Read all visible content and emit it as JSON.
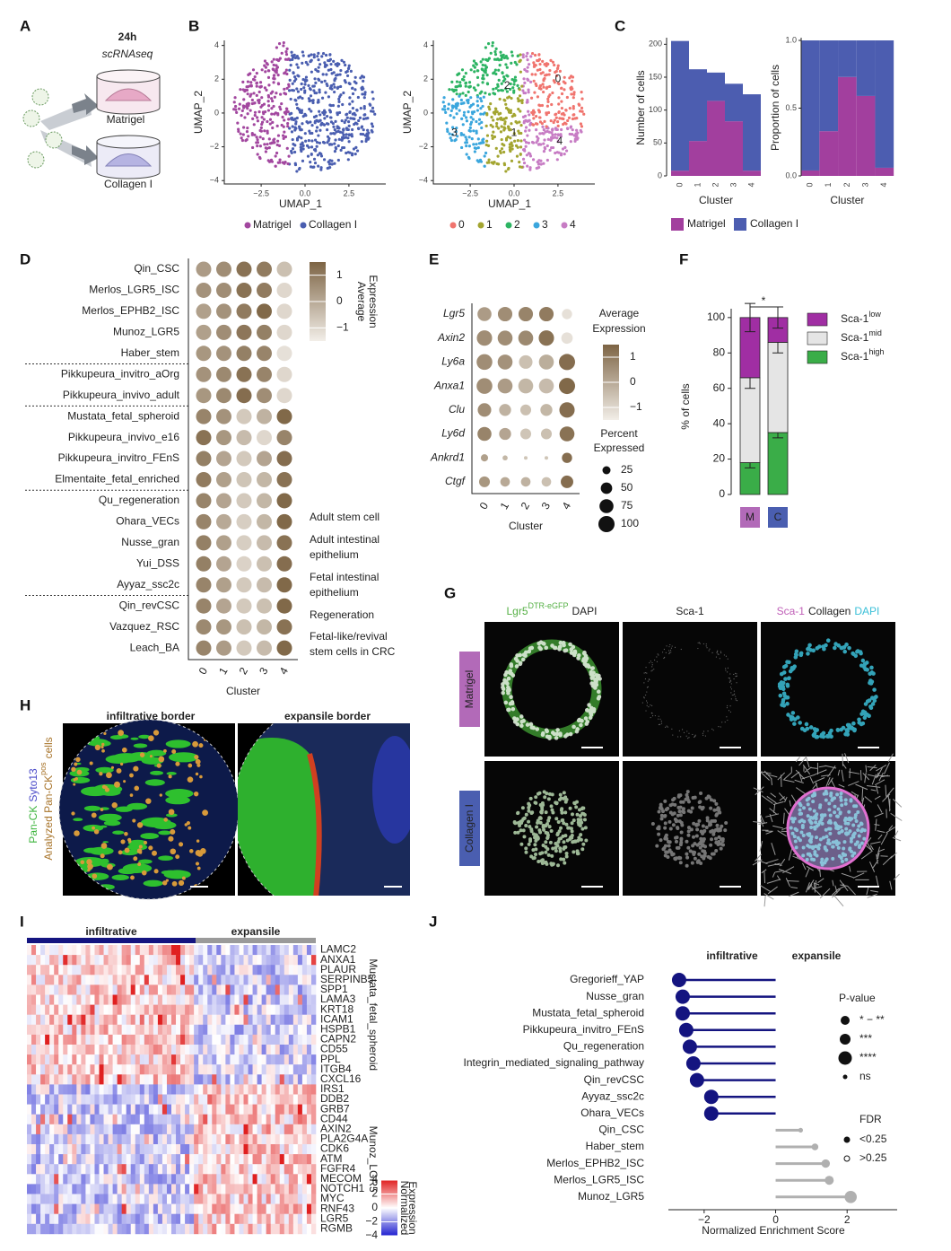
{
  "A": {
    "letter": "A",
    "time": "24h",
    "method": "scRNAseq",
    "conditions": [
      "Matrigel",
      "Collagen I"
    ]
  },
  "B": {
    "letter": "B",
    "x_label": "UMAP_1",
    "y_label": "UMAP_2",
    "xlim": [
      -4.6,
      4.6
    ],
    "ylim": [
      -4.2,
      4.3
    ],
    "xticks": [
      {
        "value": -2.5,
        "label": "−2.5"
      },
      {
        "value": 0,
        "label": "0.0"
      },
      2.5
    ],
    "yticks": [
      {
        "value": -4,
        "label": "−4"
      },
      {
        "value": -2,
        "label": "−2"
      },
      0,
      2,
      4
    ],
    "conditions": [
      {
        "name": "Matrigel",
        "color": "#a2479f"
      },
      {
        "name": "Collagen I",
        "color": "#4a5eb0"
      }
    ],
    "clusters": [
      {
        "name": "0",
        "color": "#f0746e"
      },
      {
        "name": "1",
        "color": "#a3a530"
      },
      {
        "name": "2",
        "color": "#2db463"
      },
      {
        "name": "3",
        "color": "#3aa6dd"
      },
      {
        "name": "4",
        "color": "#c77cc4"
      }
    ]
  },
  "C": {
    "letter": "C",
    "x_label": "Cluster",
    "categories": [
      "0",
      "1",
      "2",
      "3",
      "4"
    ],
    "counts": {
      "y_label": "Number of cells",
      "ylim": [
        0,
        210
      ],
      "yticks": [
        0,
        50,
        100,
        150,
        200
      ],
      "series": [
        {
          "name": "Matrigel",
          "color": "#a23f9e",
          "values": [
            8,
            53,
            114,
            83,
            8
          ]
        },
        {
          "name": "Collagen I",
          "color": "#4c5db0",
          "values": [
            197,
            109,
            43,
            57,
            116
          ]
        }
      ]
    },
    "proportions": {
      "y_label": "Proportion of cells",
      "ylim": [
        0,
        1.02
      ],
      "yticks": [
        {
          "value": 0,
          "label": "0.0"
        },
        0.5,
        {
          "value": 1,
          "label": "1.0"
        }
      ],
      "series": [
        {
          "name": "Matrigel",
          "color": "#a23f9e",
          "values": [
            0.04,
            0.33,
            0.73,
            0.59,
            0.06
          ]
        },
        {
          "name": "Collagen I",
          "color": "#4c5db0",
          "values": [
            0.96,
            0.67,
            0.27,
            0.41,
            0.94
          ]
        }
      ]
    }
  },
  "D": {
    "letter": "D",
    "x_label": "Cluster",
    "categories": [
      "0",
      "1",
      "2",
      "3",
      "4"
    ],
    "signatures": [
      "Qin_CSC",
      "Merlos_LGR5_ISC",
      "Merlos_EPHB2_ISC",
      "Munoz_LGR5",
      "Haber_stem",
      "Pikkupeura_invitro_aOrg",
      "Pikkupeura_invivo_adult",
      "Mustata_fetal_spheroid",
      "Pikkupeura_invivo_e16",
      "Pikkupeura_invitro_FEnS",
      "Elmentaite_fetal_enriched",
      "Qu_regeneration",
      "Ohara_VECs",
      "Nusse_gran",
      "Yui_DSS",
      "Ayyaz_ssc2c",
      "Qin_revCSC",
      "Vazquez_RSC",
      "Leach_BA"
    ],
    "groups": [
      {
        "lines": [
          "Adult stem cell"
        ],
        "color": "#3f9f3f",
        "members": [
          0,
          1,
          2,
          3,
          4
        ]
      },
      {
        "lines": [
          "Adult intestinal",
          "epithelium"
        ],
        "color": "#1f7a2e",
        "members": [
          5,
          6
        ]
      },
      {
        "lines": [
          "Fetal intestinal",
          "epithelium"
        ],
        "color": "#a46aa8",
        "members": [
          7,
          8,
          9,
          10
        ]
      },
      {
        "lines": [
          "Regeneration"
        ],
        "color": "#9c2fa0",
        "members": [
          11,
          12,
          13,
          14,
          15
        ]
      },
      {
        "lines": [
          "Fetal-like/revival",
          "stem cells in CRC"
        ],
        "color": "#5b2a9a",
        "members": [
          16,
          17,
          18
        ]
      }
    ],
    "expression": [
      [
        0.3,
        0.6,
        1.2,
        1.0,
        -0.5
      ],
      [
        0.5,
        0.6,
        1.2,
        1.0,
        -1.0
      ],
      [
        0.2,
        0.5,
        1.0,
        1.4,
        -1.0
      ],
      [
        0.2,
        0.6,
        1.1,
        0.9,
        -1.0
      ],
      [
        0.4,
        0.5,
        0.9,
        0.8,
        -1.2
      ],
      [
        0.5,
        0.7,
        1.2,
        0.8,
        -1.0
      ],
      [
        0.4,
        0.7,
        1.3,
        0.6,
        -1.0
      ],
      [
        0.8,
        0.5,
        -0.7,
        -0.2,
        1.4
      ],
      [
        1.2,
        0.4,
        -0.4,
        -1.0,
        0.8
      ],
      [
        0.9,
        0.1,
        -0.7,
        0.1,
        1.3
      ],
      [
        1.0,
        0.2,
        -0.6,
        -0.3,
        1.2
      ],
      [
        0.8,
        0.1,
        -0.7,
        -0.3,
        1.4
      ],
      [
        0.8,
        0.0,
        -0.8,
        -0.3,
        1.4
      ],
      [
        0.9,
        0.2,
        -0.8,
        -0.4,
        1.2
      ],
      [
        0.9,
        0.1,
        -0.9,
        -0.5,
        1.3
      ],
      [
        0.8,
        0.2,
        -0.7,
        -0.4,
        1.4
      ],
      [
        0.8,
        0.1,
        -0.7,
        -0.5,
        1.4
      ],
      [
        0.7,
        0.4,
        -0.5,
        -0.3,
        1.2
      ],
      [
        0.8,
        0.3,
        -0.7,
        -0.4,
        1.4
      ]
    ],
    "colorbar": {
      "title": [
        "Average",
        "Expression"
      ],
      "clim": [
        -1.5,
        1.5
      ],
      "ticks": [
        {
          "value": -1,
          "label": "−1"
        },
        0,
        1
      ]
    }
  },
  "E": {
    "letter": "E",
    "x_label": "Cluster",
    "categories": [
      "0",
      "1",
      "2",
      "3",
      "4"
    ],
    "genes": [
      "Lgr5",
      "Axin2",
      "Ly6a",
      "Anxa1",
      "Clu",
      "Ly6d",
      "Ankrd1",
      "Ctgf"
    ],
    "expression": [
      [
        0.3,
        0.6,
        0.8,
        1.0,
        -1.2
      ],
      [
        0.6,
        0.6,
        0.7,
        1.2,
        -1.2
      ],
      [
        0.6,
        0.5,
        -0.5,
        -0.1,
        1.3
      ],
      [
        0.6,
        0.3,
        -0.3,
        -0.4,
        1.4
      ],
      [
        0.6,
        -0.2,
        -0.5,
        -0.3,
        1.3
      ],
      [
        0.8,
        0.1,
        -0.6,
        -0.5,
        1.2
      ],
      [
        0.2,
        -0.3,
        -0.6,
        -0.6,
        1.3
      ],
      [
        0.4,
        0.0,
        -0.2,
        -0.5,
        1.3
      ]
    ],
    "percent": [
      [
        75,
        80,
        80,
        80,
        40
      ],
      [
        90,
        85,
        85,
        90,
        50
      ],
      [
        95,
        85,
        70,
        85,
        100
      ],
      [
        95,
        85,
        85,
        85,
        100
      ],
      [
        70,
        55,
        45,
        55,
        90
      ],
      [
        75,
        55,
        45,
        45,
        85
      ],
      [
        20,
        10,
        5,
        5,
        40
      ],
      [
        45,
        35,
        35,
        35,
        60
      ]
    ],
    "colorbar": {
      "title": [
        "Average",
        "Expression"
      ],
      "clim": [
        -1.5,
        1.5
      ],
      "ticks": [
        {
          "value": -1,
          "label": "−1"
        },
        0,
        1
      ]
    },
    "size_legend": {
      "title": [
        "Percent",
        "Expressed"
      ],
      "values": [
        25,
        50,
        75,
        100
      ]
    }
  },
  "F": {
    "letter": "F",
    "y_label": "% of cells",
    "categories": [
      "M",
      "C"
    ],
    "category_colors": [
      "#b26ab8",
      "#4a5eb0"
    ],
    "ylim": [
      0,
      105
    ],
    "yticks": [
      0,
      20,
      40,
      60,
      80,
      100
    ],
    "significance": "*",
    "series": [
      {
        "name": "Sca-1",
        "level": "high",
        "color": "#3aad48",
        "values": [
          18,
          35
        ],
        "errors": [
          3,
          3
        ]
      },
      {
        "name": "Sca-1",
        "level": "mid",
        "color": "#e5e5e5",
        "values": [
          48,
          51
        ],
        "errors": [
          6,
          6
        ]
      },
      {
        "name": "Sca-1",
        "level": "low",
        "color": "#a02ea3",
        "values": [
          34,
          14
        ],
        "errors": [
          8,
          6
        ]
      }
    ]
  },
  "G": {
    "letter": "G",
    "columns": [
      [
        {
          "t": "Lgr5",
          "c": "#55b045"
        },
        {
          "t": "DTR-eGFP",
          "c": "#55b045",
          "sup": true
        },
        {
          "t": "DAPI",
          "c": "#222"
        }
      ],
      [
        {
          "t": "Sca-1",
          "c": "#222"
        }
      ],
      [
        {
          "t": "Sca-1",
          "c": "#c060b8"
        },
        {
          "t": "Collagen",
          "c": "#222"
        },
        {
          "t": "DAPI",
          "c": "#3cc0d8"
        }
      ]
    ],
    "rows": [
      {
        "name": "Matrigel",
        "color": "#b26ab8"
      },
      {
        "name": "Collagen I",
        "color": "#4a5eb0"
      }
    ]
  },
  "H": {
    "letter": "H",
    "titles": [
      {
        "text": "infiltrative border",
        "color": "#141480"
      },
      {
        "text": "expansile border",
        "color": "#8a8a8a"
      }
    ],
    "label_lines": [
      [
        {
          "t": "Pan-CK",
          "c": "#3cb43c"
        },
        {
          "t": "Syto13",
          "c": "#4848c8"
        }
      ],
      [
        {
          "t": "Analyzed Pan-CK",
          "c": "#a8742a"
        },
        {
          "t": "pos",
          "c": "#a8742a",
          "sup": true
        },
        {
          "t": "cells",
          "c": "#a8742a"
        }
      ]
    ]
  },
  "I": {
    "letter": "I",
    "groups": [
      {
        "name": "infiltrative",
        "color": "#141480"
      },
      {
        "name": "expansile",
        "color": "#9a9a9a"
      }
    ],
    "gene_sets": [
      {
        "name": "Mustata_fetal_spheroid",
        "color": "#a03aa8",
        "genes": [
          "LAMC2",
          "ANXA1",
          "PLAUR",
          "SERPINB5",
          "SPP1",
          "LAMA3",
          "KRT18",
          "ICAM1",
          "HSPB1",
          "CAPN2",
          "CD55",
          "PPL",
          "ITGB4",
          "CXCL16"
        ]
      },
      {
        "name": "Munoz_LGR5",
        "color": "#3c9a3c",
        "genes": [
          "IRS1",
          "DDB2",
          "GRB7",
          "CD44",
          "AXIN2",
          "PLA2G4A",
          "CDK6",
          "ATM",
          "FGFR4",
          "MECOM",
          "NOTCH1",
          "MYC",
          "RNF43",
          "LGR5",
          "RGMB"
        ]
      }
    ],
    "colorbar": {
      "title": [
        "Normalized",
        "Expression"
      ],
      "clim": [
        -4,
        4
      ],
      "ticks": [
        {
          "value": -4,
          "label": "−4"
        },
        {
          "value": -2,
          "label": "−2"
        },
        0,
        2,
        4
      ]
    }
  },
  "J": {
    "letter": "J",
    "groups": [
      {
        "name": "infiltrative",
        "color": "#141480"
      },
      {
        "name": "expansile",
        "color": "#b0b0b0"
      }
    ],
    "categories": [
      "Gregorieff_YAP",
      "Nusse_gran",
      "Mustata_fetal_spheroid",
      "Pikkupeura_invitro_FEnS",
      "Qu_regeneration",
      "Integrin_mediated_signaling_pathway",
      "Qin_revCSC",
      "Ayyaz_ssc2c",
      "Ohara_VECs",
      "Qin_CSC",
      "Haber_stem",
      "Merlos_EPHB2_ISC",
      "Merlos_LGR5_ISC",
      "Munoz_LGR5"
    ],
    "category_colors": [
      "#222",
      "#9c2fa0",
      "#a46aa8",
      "#a46aa8",
      "#9c2fa0",
      "#222",
      "#5b2a9a",
      "#9c2fa0",
      "#9c2fa0",
      "#3f9f3f",
      "#3f9f3f",
      "#3f9f3f",
      "#3f9f3f",
      "#3f9f3f"
    ],
    "values": [
      -2.7,
      -2.6,
      -2.6,
      -2.5,
      -2.4,
      -2.3,
      -2.2,
      -1.8,
      -1.8,
      0.7,
      1.1,
      1.4,
      1.5,
      2.1
    ],
    "x_label": "Normalized Enrichment Score",
    "xlim": [
      -3,
      3.4
    ],
    "xticks": [
      {
        "value": -2,
        "label": "−2"
      },
      0,
      2
    ],
    "pvalue_legend": {
      "title": "P-value",
      "labels": [
        "* − **",
        "***",
        "****",
        "ns"
      ]
    },
    "fdr_legend": {
      "title": "FDR",
      "labels": [
        "<0.25",
        ">0.25"
      ]
    }
  }
}
